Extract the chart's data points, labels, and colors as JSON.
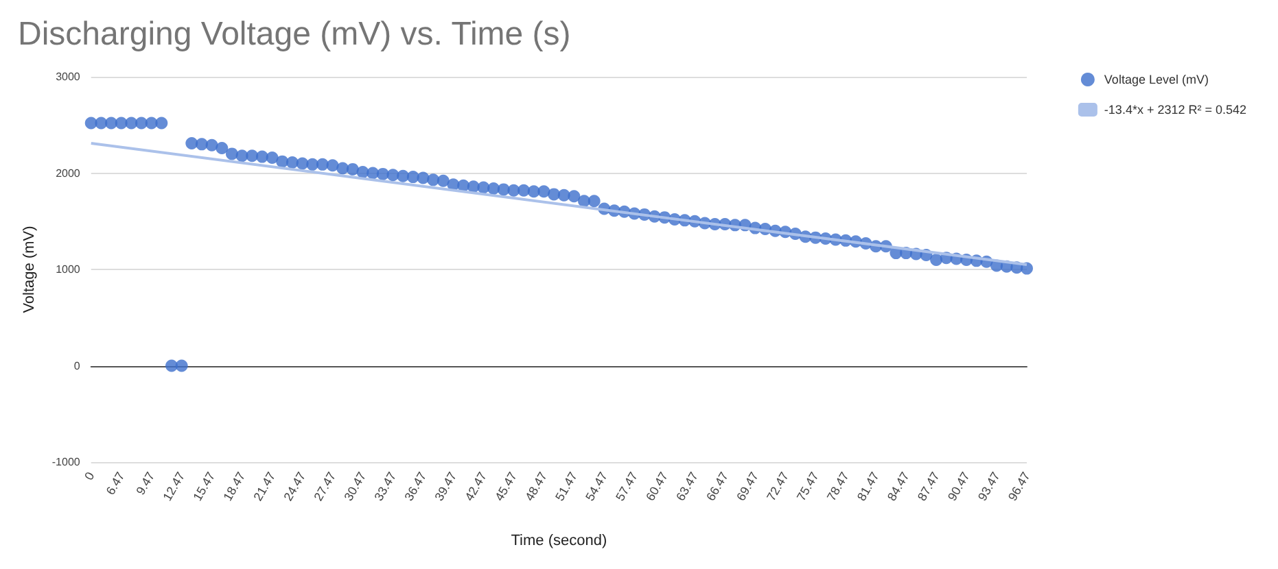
{
  "chart_data": {
    "type": "scatter",
    "title": "Discharging Voltage (mV) vs. Time (s)",
    "xlabel": "Time (second)",
    "ylabel": "Voltage (mV)",
    "categories": [
      "0",
      null,
      null,
      "6.47",
      null,
      null,
      "9.47",
      null,
      null,
      "12.47",
      null,
      null,
      "15.47",
      null,
      null,
      "18.47",
      null,
      null,
      "21.47",
      null,
      null,
      "24.47",
      null,
      null,
      "27.47",
      null,
      null,
      "30.47",
      null,
      null,
      "33.47",
      null,
      null,
      "36.47",
      null,
      null,
      "39.47",
      null,
      null,
      "42.47",
      null,
      null,
      "45.47",
      null,
      null,
      "48.47",
      null,
      null,
      "51.47",
      null,
      null,
      "54.47",
      null,
      null,
      "57.47",
      null,
      null,
      "60.47",
      null,
      null,
      "63.47",
      null,
      null,
      "66.47",
      null,
      null,
      "69.47",
      null,
      null,
      "72.47",
      null,
      null,
      "75.47",
      null,
      null,
      "78.47",
      null,
      null,
      "81.47",
      null,
      null,
      "84.47",
      null,
      null,
      "87.47",
      null,
      null,
      "90.47",
      null,
      null,
      "93.47",
      null,
      null,
      "96.47"
    ],
    "series": [
      {
        "name": "Voltage Level (mV)",
        "color": "#3d6fcc",
        "values": [
          2520,
          2520,
          2520,
          2520,
          2520,
          2520,
          2520,
          2520,
          0,
          0,
          2310,
          2300,
          2290,
          2260,
          2200,
          2180,
          2180,
          2170,
          2160,
          2120,
          2110,
          2100,
          2090,
          2090,
          2080,
          2050,
          2040,
          2010,
          2000,
          1990,
          1980,
          1970,
          1960,
          1950,
          1930,
          1920,
          1880,
          1870,
          1860,
          1850,
          1840,
          1830,
          1820,
          1820,
          1810,
          1810,
          1780,
          1770,
          1760,
          1710,
          1710,
          1630,
          1610,
          1600,
          1580,
          1570,
          1550,
          1540,
          1520,
          1510,
          1500,
          1480,
          1470,
          1470,
          1460,
          1460,
          1430,
          1420,
          1400,
          1390,
          1370,
          1340,
          1330,
          1320,
          1310,
          1300,
          1290,
          1270,
          1240,
          1240,
          1170,
          1170,
          1160,
          1150,
          1100,
          1120,
          1110,
          1100,
          1090,
          1080,
          1040,
          1030,
          1020,
          1010
        ]
      },
      {
        "name": "-13.4*x + 2312 R² = 0.542",
        "type": "line",
        "marker": "none",
        "color": "#abc1ea",
        "x": [
          "0",
          "96.47"
        ],
        "values": [
          2310,
          1050
        ]
      }
    ],
    "ylim": [
      -1000,
      3000
    ],
    "yticks": [
      -1000,
      0,
      1000,
      2000,
      3000
    ],
    "grid": "y",
    "legend": "top right",
    "marker": "circle"
  }
}
